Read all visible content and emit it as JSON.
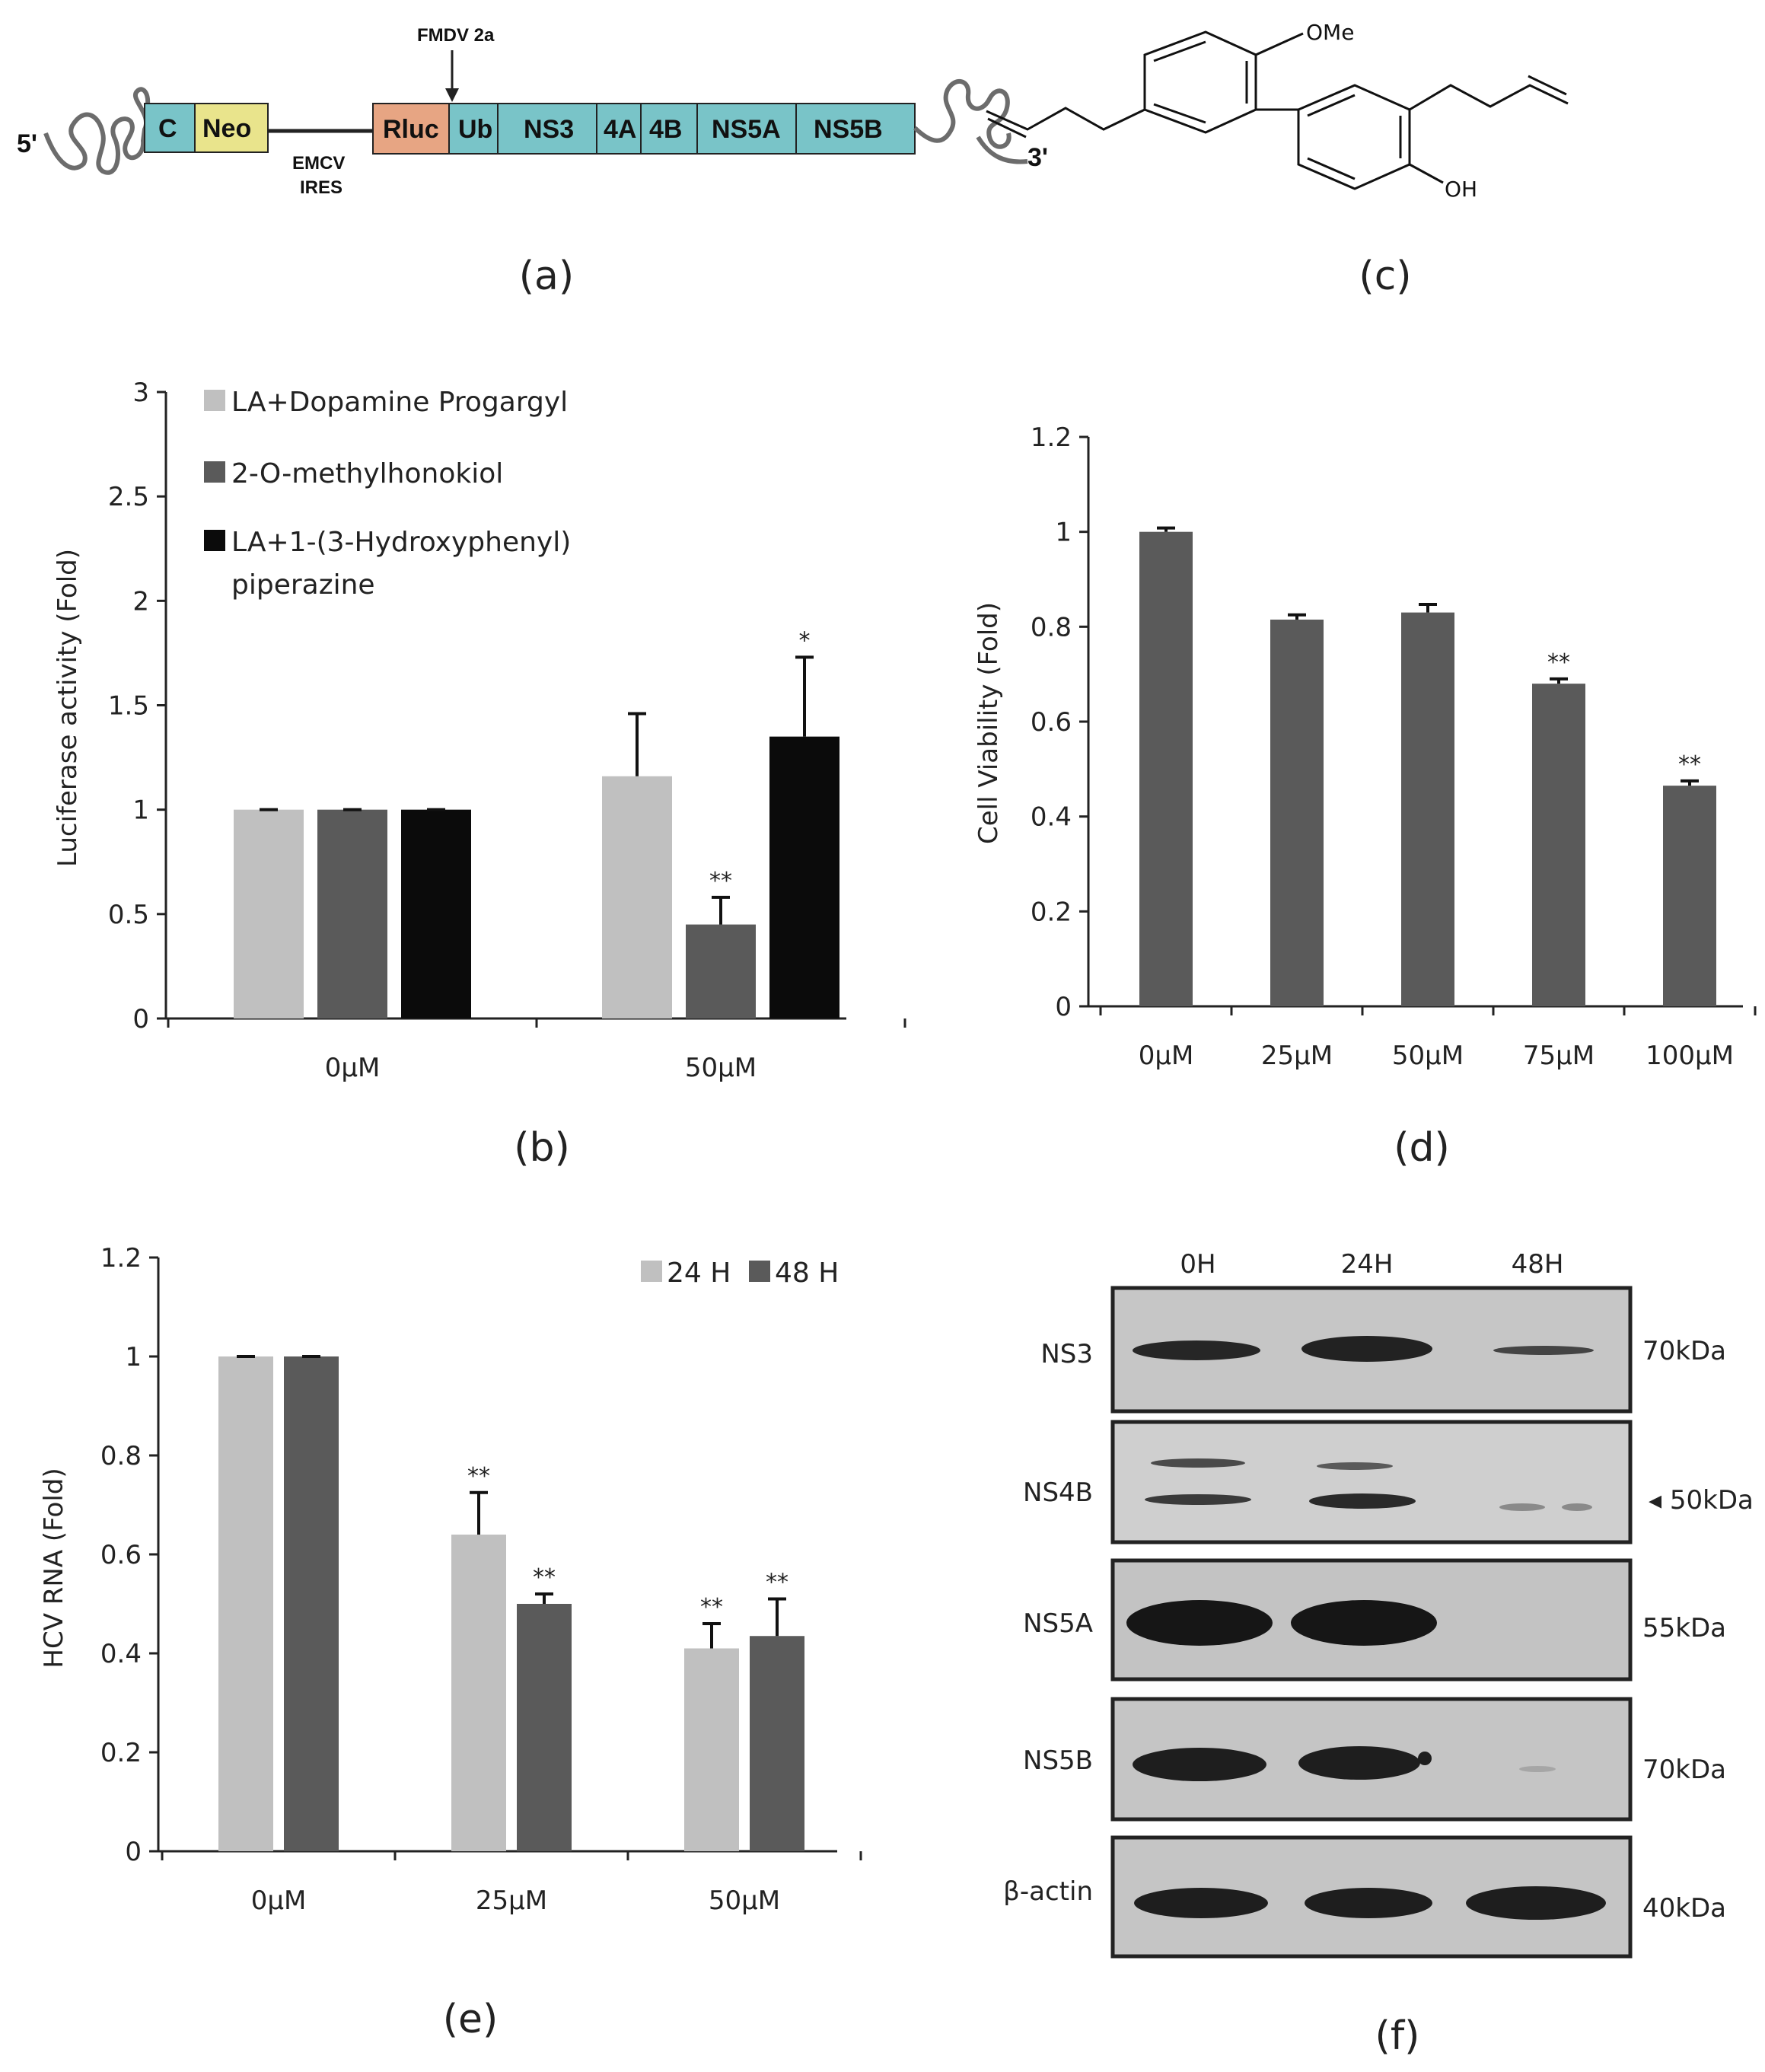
{
  "panels": {
    "a": {
      "label": "(a)",
      "five_prime": "5'",
      "three_prime": "3'",
      "segments": [
        "C",
        "Neo",
        "Rluc",
        "Ub",
        "NS3",
        "4A",
        "4B",
        "NS5A",
        "NS5B"
      ],
      "fmdv": "FMDV 2a",
      "ires_line1": "EMCV",
      "ires_line2": "IRES"
    },
    "c": {
      "label": "(c)",
      "ome": "OMe",
      "oh": "OH"
    },
    "f": {
      "label": "(f)",
      "lanes": [
        "0H",
        "24H",
        "48H"
      ],
      "rows": [
        {
          "protein": "NS3",
          "size": "70kDa"
        },
        {
          "protein": "NS4B",
          "size": "◂ 50kDa"
        },
        {
          "protein": "NS5A",
          "size": "55kDa"
        },
        {
          "protein": "NS5B",
          "size": "70kDa"
        },
        {
          "protein": "β-actin",
          "size": "40kDa"
        }
      ]
    }
  },
  "chart_data": [
    {
      "panel": "b",
      "label": "(b)",
      "type": "bar",
      "ylabel": "Luciferase activity (Fold)",
      "xlabel": "",
      "ylim": [
        0,
        3
      ],
      "yticks": [
        "0",
        "0.5",
        "1",
        "1.5",
        "2",
        "2.5",
        "3"
      ],
      "categories": [
        "0µM",
        "50µM"
      ],
      "series": [
        {
          "name": "LA+Dopamine Progargyl",
          "color": "#c0c0c0",
          "values": [
            1.0,
            1.16
          ],
          "errors": [
            0.0,
            0.3
          ],
          "stars": [
            "",
            ""
          ]
        },
        {
          "name": "2-O-methylhonokiol",
          "color": "#5a5a5a",
          "values": [
            1.0,
            0.45
          ],
          "errors": [
            0.0,
            0.13
          ],
          "stars": [
            "",
            "**"
          ]
        },
        {
          "name": "LA+1-(3-Hydroxyphenyl) piperazine",
          "color": "#0b0b0b",
          "values": [
            1.0,
            1.35
          ],
          "errors": [
            0.0,
            0.38
          ],
          "stars": [
            "",
            "*"
          ]
        }
      ],
      "legend_lines": [
        [
          "LA+Dopamine Progargyl"
        ],
        [
          "2-O-methylhonokiol"
        ],
        [
          "LA+1-(3-Hydroxyphenyl)",
          "piperazine"
        ]
      ]
    },
    {
      "panel": "d",
      "label": "(d)",
      "type": "bar",
      "ylabel": "Cell Viability  (Fold)",
      "xlabel": "",
      "ylim": [
        0,
        1.2
      ],
      "yticks": [
        "0",
        "0.2",
        "0.4",
        "0.6",
        "0.8",
        "1",
        "1.2"
      ],
      "categories": [
        "0µM",
        "25µM",
        "50µM",
        "75µM",
        "100µM"
      ],
      "series": [
        {
          "name": "Cell viability",
          "color": "#5a5a5a",
          "values": [
            1.0,
            0.815,
            0.83,
            0.68,
            0.465
          ],
          "errors": [
            0.008,
            0.01,
            0.017,
            0.01,
            0.01
          ],
          "stars": [
            "",
            "",
            "",
            "**",
            "**"
          ]
        }
      ]
    },
    {
      "panel": "e",
      "label": "(e)",
      "type": "bar",
      "ylabel": "HCV RNA (Fold)",
      "xlabel": "",
      "ylim": [
        0,
        1.2
      ],
      "yticks": [
        "0",
        "0.2",
        "0.4",
        "0.6",
        "0.8",
        "1",
        "1.2"
      ],
      "categories": [
        "0µM",
        "25µM",
        "50µM"
      ],
      "series": [
        {
          "name": "24 H",
          "color": "#c0c0c0",
          "values": [
            1.0,
            0.64,
            0.41
          ],
          "errors": [
            0.0,
            0.085,
            0.05
          ],
          "stars": [
            "",
            "**",
            "**"
          ]
        },
        {
          "name": "48 H",
          "color": "#5a5a5a",
          "values": [
            1.0,
            0.5,
            0.435
          ],
          "errors": [
            0.0,
            0.02,
            0.075
          ],
          "stars": [
            "",
            "**",
            "**"
          ]
        }
      ],
      "legend_lines": [
        [
          "24 H"
        ],
        [
          "48 H"
        ]
      ]
    }
  ]
}
